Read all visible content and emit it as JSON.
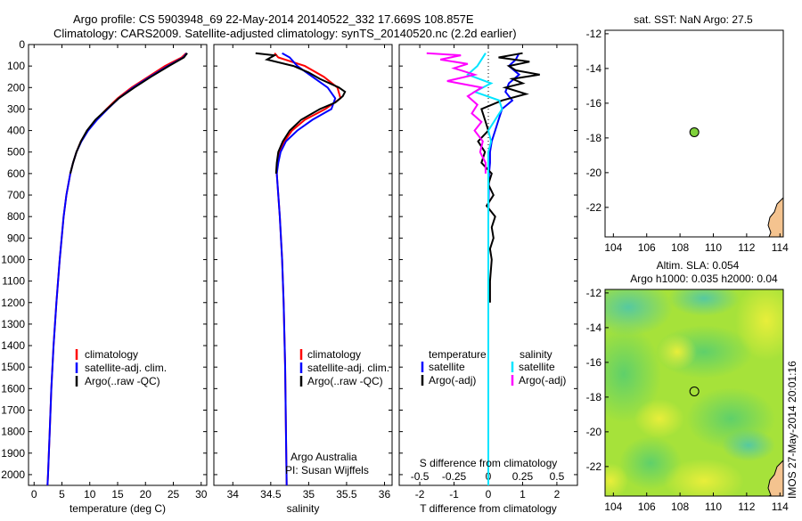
{
  "title_line1": "Argo profile: CS 5903948_69 22-May-2014 20140522_332 17.669S 108.857E",
  "title_line2": "Climatology: CARS2009. Satellite-adjusted climatology: synTS_20140520.nc (2.2d earlier)",
  "side_label": "IMOS 27-May-2014 20:01:16",
  "colors": {
    "climatology": "#ff0000",
    "satellite": "#0000ff",
    "argo": "#000000",
    "sal_sat": "#00e5ff",
    "sal_argo": "#ff00ff",
    "marker": "#7fd13b",
    "land": "#f4c38f"
  },
  "chart_data": [
    {
      "type": "line",
      "name": "temperature",
      "xlabel": "temperature (deg C)",
      "xlim": [
        -1,
        31
      ],
      "ylim": [
        2050,
        0
      ],
      "xticks": [
        "0",
        "5",
        "10",
        "15",
        "20",
        "25",
        "30"
      ],
      "yticks": [
        "0",
        "100",
        "200",
        "300",
        "400",
        "500",
        "600",
        "700",
        "800",
        "900",
        "1000",
        "1100",
        "1200",
        "1300",
        "1400",
        "1500",
        "1600",
        "1700",
        "1800",
        "1900",
        "2000"
      ],
      "legend": [
        "climatology",
        "satellite-adj. clim.",
        "Argo(..raw -QC)"
      ],
      "series": [
        {
          "name": "climatology",
          "depth": [
            40,
            60,
            100,
            150,
            200,
            250,
            300,
            350,
            400,
            450,
            500,
            550,
            600,
            700,
            800,
            1000,
            1200,
            1400,
            1600,
            1800,
            2000,
            2050
          ],
          "values": [
            27.3,
            26.5,
            23.5,
            20.5,
            17.5,
            15.0,
            13.0,
            11.2,
            9.6,
            8.4,
            7.6,
            7.0,
            6.5,
            5.8,
            5.3,
            4.6,
            4.0,
            3.5,
            3.1,
            2.8,
            2.5,
            2.4
          ]
        },
        {
          "name": "satellite-adj. clim.",
          "depth": [
            40,
            60,
            100,
            150,
            200,
            250,
            300,
            350,
            400,
            450,
            500,
            550,
            600,
            700,
            800,
            1000,
            1200,
            1400,
            1600,
            1800,
            2000,
            2050
          ],
          "values": [
            27.4,
            26.8,
            24.0,
            20.8,
            17.8,
            15.2,
            13.2,
            11.3,
            9.7,
            8.5,
            7.6,
            7.0,
            6.5,
            5.8,
            5.3,
            4.6,
            4.0,
            3.5,
            3.1,
            2.8,
            2.5,
            2.4
          ]
        },
        {
          "name": "Argo(..raw -QC)",
          "depth": [
            40,
            60,
            100,
            150,
            200,
            250,
            300,
            350,
            400,
            450,
            500,
            550,
            600
          ],
          "values": [
            27.5,
            26.9,
            24.2,
            21.0,
            18.0,
            15.2,
            13.1,
            11.0,
            9.5,
            8.4,
            7.6,
            7.0,
            6.5
          ]
        }
      ]
    },
    {
      "type": "line",
      "name": "salinity",
      "xlabel": "salinity",
      "xlim": [
        33.75,
        36.1
      ],
      "ylim": [
        2050,
        0
      ],
      "xticks": [
        "34",
        "34.5",
        "35",
        "35.5",
        "36"
      ],
      "legend": [
        "climatology",
        "satellite-adj. clim.",
        "Argo(..raw -QC)"
      ],
      "annotation": [
        "Argo Australia",
        "PI: Susan Wijffels"
      ],
      "series": [
        {
          "name": "climatology",
          "depth": [
            40,
            60,
            100,
            150,
            200,
            250,
            300,
            350,
            400,
            450,
            500,
            550,
            600,
            700,
            800,
            1000,
            1200,
            1500,
            1800,
            2050
          ],
          "values": [
            34.55,
            34.6,
            34.95,
            35.2,
            35.38,
            35.42,
            35.22,
            34.95,
            34.78,
            34.68,
            34.62,
            34.59,
            34.58,
            34.6,
            34.62,
            34.65,
            34.67,
            34.69,
            34.7,
            34.71
          ]
        },
        {
          "name": "satellite-adj. clim.",
          "depth": [
            40,
            60,
            100,
            150,
            200,
            250,
            300,
            350,
            400,
            450,
            500,
            550,
            600,
            700,
            800,
            1000,
            1200,
            1500,
            1800,
            2050
          ],
          "values": [
            34.65,
            34.75,
            34.85,
            35.05,
            35.25,
            35.35,
            35.3,
            35.05,
            34.85,
            34.7,
            34.63,
            34.6,
            34.58,
            34.6,
            34.62,
            34.65,
            34.67,
            34.69,
            34.7,
            34.71
          ]
        },
        {
          "name": "Argo(..raw -QC)",
          "depth": [
            40,
            50,
            70,
            100,
            130,
            160,
            200,
            220,
            240,
            270,
            300,
            350,
            400,
            450,
            500,
            550,
            600
          ],
          "values": [
            34.3,
            34.55,
            34.45,
            34.8,
            35.0,
            35.15,
            35.4,
            35.48,
            35.45,
            35.35,
            35.15,
            34.9,
            34.75,
            34.66,
            34.6,
            34.58,
            34.57
          ]
        }
      ]
    },
    {
      "type": "line",
      "name": "difference",
      "xlabel": "T difference from climatology",
      "xlabel_top": "S difference from climatology",
      "xlim": [
        -2.6,
        2.6
      ],
      "ylim": [
        2050,
        0
      ],
      "xticks_T": [
        "-2",
        "-1",
        "0",
        "1",
        "2"
      ],
      "xticks_S": [
        "-0.5",
        "-0.25",
        "0",
        "0.25",
        "0.5"
      ],
      "legend_left_title": "temperature",
      "legend_right_title": "salinity",
      "legend_left": [
        "satellite",
        "Argo(-adj)"
      ],
      "legend_right": [
        "satellite",
        "Argo(-adj)"
      ],
      "series": [
        {
          "name": "temperature satellite",
          "depth": [
            40,
            70,
            100,
            140,
            180,
            220,
            260,
            300,
            350,
            400,
            450,
            500,
            550,
            600,
            800,
            1000,
            1500,
            2050
          ],
          "values": [
            0.9,
            0.8,
            0.6,
            0.9,
            0.6,
            0.5,
            0.7,
            0.4,
            0.3,
            0.2,
            0.1,
            0.05,
            0.05,
            0.02,
            0.0,
            0.0,
            0.0,
            0.0
          ]
        },
        {
          "name": "temperature Argo(-adj)",
          "depth": [
            40,
            60,
            80,
            100,
            120,
            140,
            160,
            180,
            200,
            230,
            260,
            300,
            350,
            400,
            450,
            500,
            550,
            600,
            650,
            700,
            750,
            800,
            850,
            900,
            950,
            1000,
            1100,
            1200
          ],
          "values": [
            1.0,
            0.3,
            1.2,
            0.6,
            0.8,
            1.5,
            0.7,
            1.0,
            0.5,
            1.1,
            0.4,
            -0.2,
            -0.1,
            0.0,
            -0.3,
            -0.1,
            -0.2,
            0.1,
            0.0,
            0.15,
            -0.05,
            0.2,
            0.1,
            0.15,
            0.05,
            0.1,
            0.05,
            0.05
          ]
        },
        {
          "name": "salinity satellite",
          "depth": [
            40,
            70,
            100,
            140,
            180,
            220,
            260,
            300,
            350,
            400,
            450,
            500,
            600,
            800,
            1000,
            1500,
            2050
          ],
          "values": [
            -0.02,
            -0.05,
            -0.08,
            -0.15,
            0.02,
            -0.1,
            0.08,
            0.1,
            0.05,
            0.0,
            0.02,
            0.0,
            0.0,
            0.0,
            0.0,
            0.0,
            0.0
          ]
        },
        {
          "name": "salinity Argo(-adj)",
          "depth": [
            40,
            50,
            70,
            90,
            110,
            140,
            170,
            200,
            240,
            280,
            320,
            360,
            400,
            450,
            500,
            550,
            600
          ],
          "values": [
            -0.45,
            -0.2,
            -0.35,
            -0.15,
            -0.25,
            -0.1,
            -0.3,
            -0.05,
            -0.15,
            -0.08,
            -0.12,
            -0.05,
            -0.1,
            -0.04,
            -0.06,
            -0.02,
            -0.02
          ]
        }
      ]
    },
    {
      "type": "scatter",
      "name": "sst map",
      "title": "sat. SST: NaN Argo: 27.5",
      "xlim": [
        103.5,
        114.2
      ],
      "ylim": [
        -23.7,
        -11.8
      ],
      "xticks": [
        "104",
        "106",
        "108",
        "110",
        "112",
        "114"
      ],
      "yticks": [
        "-12",
        "-14",
        "-16",
        "-18",
        "-20",
        "-22"
      ],
      "points": [
        {
          "x": 108.86,
          "y": -17.67
        }
      ]
    },
    {
      "type": "heatmap",
      "name": "altimetry map",
      "title_line1": "Altim. SLA: 0.054",
      "title_line2": "Argo h1000: 0.035 h2000: 0.04",
      "xlim": [
        103.5,
        114.2
      ],
      "ylim": [
        -23.7,
        -11.8
      ],
      "xticks": [
        "104",
        "106",
        "108",
        "110",
        "112",
        "114"
      ],
      "yticks": [
        "-12",
        "-14",
        "-16",
        "-18",
        "-20",
        "-22"
      ],
      "points": [
        {
          "x": 108.86,
          "y": -17.67
        }
      ]
    }
  ]
}
